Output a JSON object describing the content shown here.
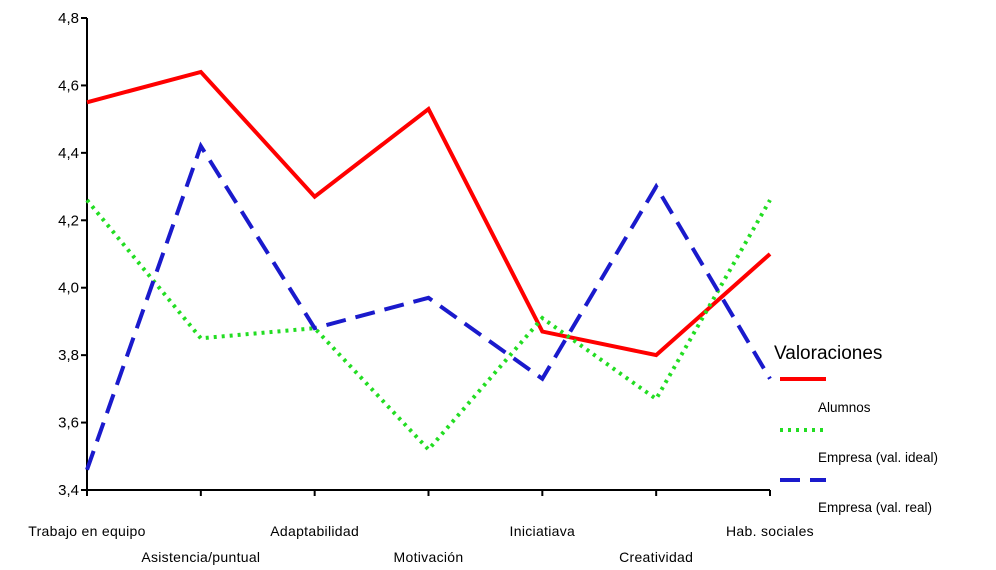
{
  "chart_data": {
    "type": "line",
    "title": "",
    "xlabel": "",
    "ylabel": "",
    "categories": [
      "Trabajo en equipo",
      "Asistencia/puntual",
      "Adaptabilidad",
      "Motivación",
      "Iniciatiava",
      "Creatividad",
      "Hab. sociales"
    ],
    "ylim": [
      3.4,
      4.8
    ],
    "yticks": [
      "3,4",
      "3,6",
      "3,8",
      "4,0",
      "4,2",
      "4,4",
      "4,6",
      "4,8"
    ],
    "ytick_values": [
      3.4,
      3.6,
      3.8,
      4.0,
      4.2,
      4.4,
      4.6,
      4.8
    ],
    "grid": false,
    "legend": {
      "title": "Valoraciones",
      "position": "right"
    },
    "series": [
      {
        "name": "Alumnos",
        "color": "#ff0000",
        "style": "solid",
        "values": [
          4.55,
          4.64,
          4.27,
          4.53,
          3.87,
          3.8,
          4.1
        ]
      },
      {
        "name": "Empresa (val. ideal)",
        "color": "#22dd22",
        "style": "dotted",
        "values": [
          4.26,
          3.85,
          3.88,
          3.52,
          3.91,
          3.67,
          4.26
        ]
      },
      {
        "name": "Empresa (val. real)",
        "color": "#1a1acc",
        "style": "dashed",
        "values": [
          3.46,
          4.42,
          3.88,
          3.97,
          3.73,
          4.3,
          3.73
        ]
      }
    ]
  }
}
